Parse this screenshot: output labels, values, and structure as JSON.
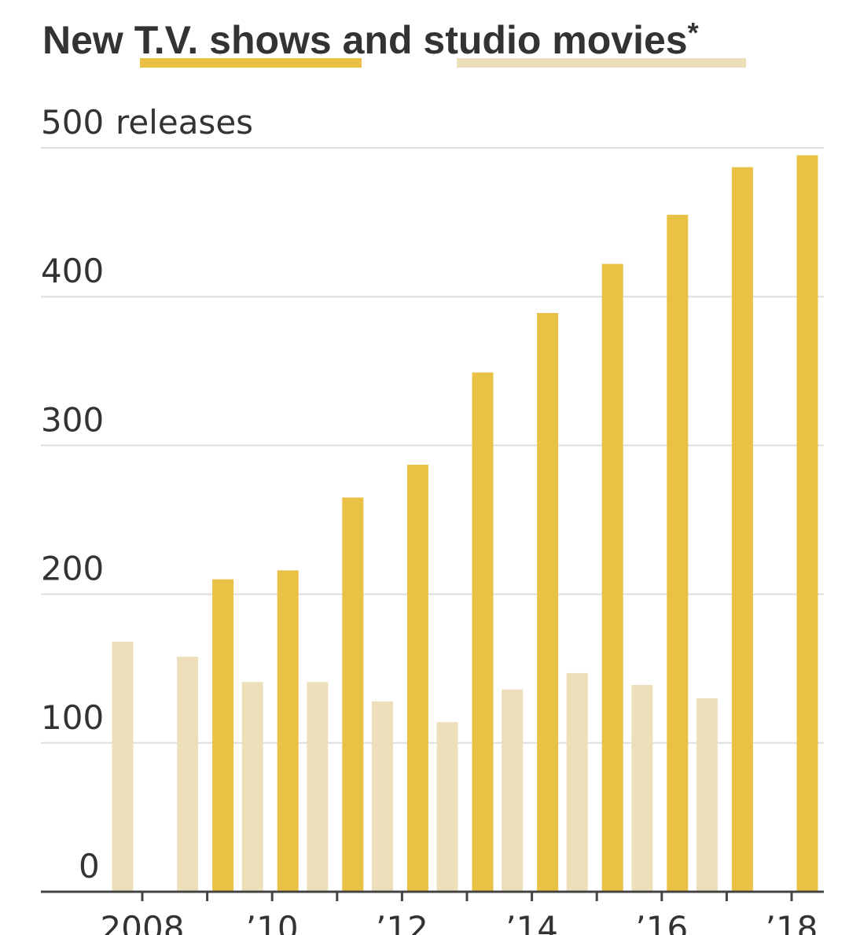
{
  "title": {
    "before": "New ",
    "series1_label": "T.V. shows",
    "middle": " and ",
    "series2_label": "studio movies",
    "suffix": "*"
  },
  "colors": {
    "tv": "#E8C145",
    "movies": "#EEDFBB",
    "text": "#333333"
  },
  "chart_data": {
    "type": "bar",
    "unit_label": "releases",
    "ylim": [
      0,
      500
    ],
    "yticks": [
      0,
      100,
      200,
      300,
      400,
      500
    ],
    "grid": true,
    "categories": [
      2008,
      2009,
      2010,
      2011,
      2012,
      2013,
      2014,
      2015,
      2016,
      2017,
      2018
    ],
    "xtick_labels": [
      {
        "year": 2008,
        "label": "2008"
      },
      {
        "year": 2010,
        "label": "’10"
      },
      {
        "year": 2012,
        "label": "’12"
      },
      {
        "year": 2014,
        "label": "’14"
      },
      {
        "year": 2016,
        "label": "’16"
      },
      {
        "year": 2018,
        "label": "’18"
      }
    ],
    "series": [
      {
        "name": "T.V. shows",
        "color": "#E8C145",
        "values": [
          null,
          210,
          216,
          265,
          287,
          349,
          389,
          422,
          455,
          487,
          495
        ]
      },
      {
        "name": "studio movies",
        "color": "#EEDFBB",
        "values": [
          168,
          158,
          141,
          141,
          128,
          114,
          136,
          147,
          139,
          130,
          null
        ]
      }
    ]
  }
}
